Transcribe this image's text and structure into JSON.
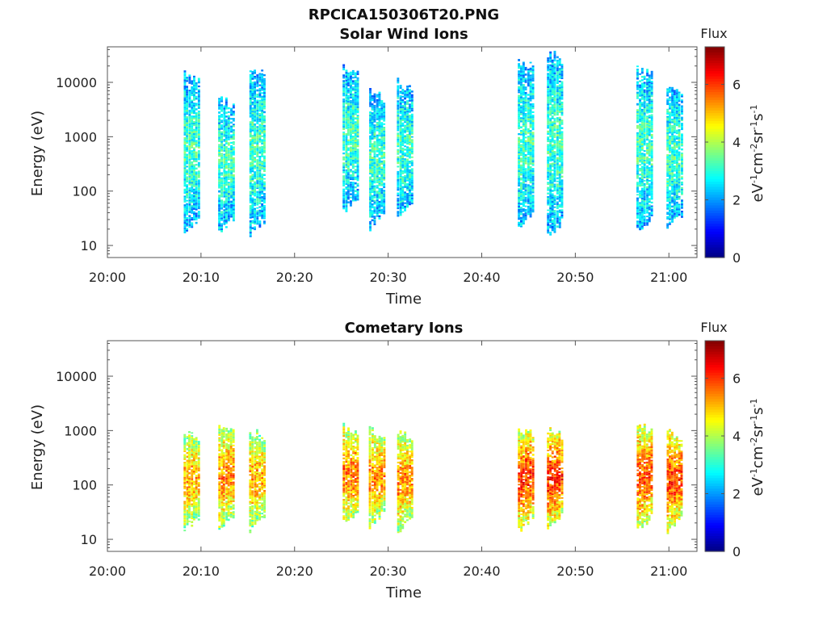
{
  "figure_title": "RPCICA150306T20.PNG",
  "chart_data": [
    {
      "type": "heatmap",
      "title": "Solar Wind Ions",
      "xlabel": "Time",
      "ylabel": "Energy (eV)",
      "x_ticks": [
        "20:00",
        "20:10",
        "20:20",
        "20:30",
        "20:40",
        "20:50",
        "21:00"
      ],
      "x_range_minutes": [
        0,
        63
      ],
      "y_scale": "log",
      "y_ticks": [
        "10",
        "100",
        "1000",
        "10000"
      ],
      "y_range": [
        6,
        45000
      ],
      "colorbar": {
        "title": "Flux",
        "ticks": [
          "0",
          "2",
          "4",
          "6"
        ],
        "range": [
          0,
          7.3
        ],
        "unit_base": [
          "eV",
          "cm",
          "sr",
          "s"
        ],
        "unit_exp": [
          "-1",
          "-2",
          "-1",
          "-1"
        ]
      },
      "grid": false,
      "bursts": [
        {
          "t": 8.9,
          "emin": 25,
          "emax": 15000,
          "level": 2.6
        },
        {
          "t": 12.6,
          "emin": 25,
          "emax": 5000,
          "level": 2.6
        },
        {
          "t": 15.9,
          "emin": 22,
          "emax": 18000,
          "level": 2.6
        },
        {
          "t": 25.9,
          "emin": 60,
          "emax": 20000,
          "level": 2.6
        },
        {
          "t": 28.7,
          "emin": 30,
          "emax": 7000,
          "level": 2.6
        },
        {
          "t": 31.7,
          "emin": 40,
          "emax": 10000,
          "level": 2.6
        },
        {
          "t": 44.6,
          "emin": 30,
          "emax": 25000,
          "level": 2.6
        },
        {
          "t": 47.7,
          "emin": 20,
          "emax": 35000,
          "level": 2.6
        },
        {
          "t": 57.3,
          "emin": 25,
          "emax": 18000,
          "level": 2.6
        },
        {
          "t": 60.5,
          "emin": 30,
          "emax": 8000,
          "level": 2.6
        }
      ]
    },
    {
      "type": "heatmap",
      "title": "Cometary Ions",
      "xlabel": "Time",
      "ylabel": "Energy (eV)",
      "x_ticks": [
        "20:00",
        "20:10",
        "20:20",
        "20:30",
        "20:40",
        "20:50",
        "21:00"
      ],
      "x_range_minutes": [
        0,
        63
      ],
      "y_scale": "log",
      "y_ticks": [
        "10",
        "100",
        "1000",
        "10000"
      ],
      "y_range": [
        6,
        45000
      ],
      "colorbar": {
        "title": "Flux",
        "ticks": [
          "0",
          "2",
          "4",
          "6"
        ],
        "range": [
          0,
          7.3
        ],
        "unit_base": [
          "eV",
          "cm",
          "sr",
          "s"
        ],
        "unit_exp": [
          "-1",
          "-2",
          "-1",
          "-1"
        ]
      },
      "grid": false,
      "bursts": [
        {
          "t": 8.9,
          "emin": 20,
          "emax": 900,
          "level": 4.3
        },
        {
          "t": 12.6,
          "emin": 20,
          "emax": 1200,
          "level": 4.5
        },
        {
          "t": 15.9,
          "emin": 20,
          "emax": 1000,
          "level": 4.3
        },
        {
          "t": 25.9,
          "emin": 25,
          "emax": 1100,
          "level": 4.6
        },
        {
          "t": 28.7,
          "emin": 25,
          "emax": 1000,
          "level": 4.5
        },
        {
          "t": 31.7,
          "emin": 20,
          "emax": 1000,
          "level": 4.5
        },
        {
          "t": 44.6,
          "emin": 20,
          "emax": 1100,
          "level": 4.9
        },
        {
          "t": 47.7,
          "emin": 20,
          "emax": 1000,
          "level": 5.0
        },
        {
          "t": 57.3,
          "emin": 20,
          "emax": 1200,
          "level": 4.8
        },
        {
          "t": 60.5,
          "emin": 20,
          "emax": 1000,
          "level": 4.9
        }
      ]
    }
  ]
}
